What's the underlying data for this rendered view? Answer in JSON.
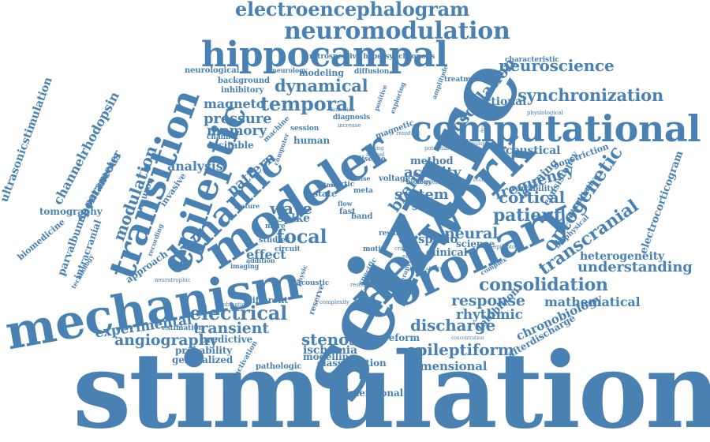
{
  "colors": {
    "word": "#4a81b3",
    "background": "#ffffff"
  },
  "words": {
    "stimulation": "stimulation",
    "seizure": "seizure",
    "network": "network",
    "computational": "computational",
    "mechanism": "mechanism",
    "modeler": "modeler",
    "coronary": "coronary",
    "hippocampal": "hippocampal",
    "transition": "transition",
    "epileptic": "epileptic",
    "dynamic": "dynamic",
    "neuromodulation": "neuromodulation",
    "electroencephalogram": "electroencephalogram",
    "neuroscience": "neuroscience",
    "synchronization": "synchronization",
    "oscillation": "oscillation",
    "optogenetic": "optogenetic",
    "transcranial": "transcranial",
    "consolidation": "consolidation",
    "understanding": "understanding",
    "electrical": "electrical",
    "discharge": "discharge",
    "epileptiform": "epileptiform",
    "angiography": "angiography",
    "stenosis": "stenosis",
    "temporal": "temporal",
    "dynamical": "dynamical",
    "patient": "patient",
    "cortical": "cortical",
    "frequency": "frequency",
    "neural": "neural",
    "focal": "focal",
    "wave": "wave",
    "modulation": "modulation",
    "response": "response",
    "rhythmic": "rhythmic",
    "mathematical": "mathematical",
    "heterogeneity": "heterogeneity",
    "chronobiology": "chronobiology",
    "afterdischarge": "afterdischarge",
    "experimental": "experimental",
    "transient": "transient",
    "pressure": "pressure",
    "magneto": "magneto",
    "memory": "memory",
    "activity": "activity",
    "system": "system",
    "brain": "brain",
    "pattern": "pattern",
    "analysis": "analysis",
    "effect": "effect",
    "acoustical": "acoustical",
    "fractional": "fractional",
    "ultrasonicstimulation": "ultrasonicstimulation",
    "channelrhodopsin": "channelrhodopsin",
    "tomography": "tomography",
    "parvalbumin": "parvalbumin",
    "biomedicine": "biomedicine",
    "electrocorticogram": "electrocorticogram",
    "dimensional": "dimensional",
    "classification": "classification",
    "modelling": "modelling",
    "ischemia": "ischemia",
    "waveform": "waveform",
    "probability": "probability",
    "generalized": "generalized",
    "pathologic": "pathologic",
    "predictive": "predictive",
    "estimation": "estimation",
    "approach": "approach",
    "different": "different",
    "neurological": "neurological",
    "modeling": "modeling",
    "background": "background",
    "inhibitory": "inhibitory",
    "retrospective hypersynchronous": "retrospective hypersynchronous",
    "characteristic": "characteristic",
    "treatment": "treatment",
    "excitable": "excitable",
    "channel": "channel",
    "invasive": "invasive",
    "neuron": "neuron",
    "spike": "spike",
    "human": "human",
    "method": "method",
    "study": "study",
    "clinical": "clinical",
    "science": "science",
    "spatio": "spatio",
    "learning": "learning",
    "inhibition": "inhibition",
    "intracranial": "intracranial",
    "parameter": "parameter",
    "spontaneous": "spontaneous",
    "reserve": "reserve",
    "state": "state",
    "session": "session",
    "diagnosis": "diagnosis",
    "diffusion": "diffusion",
    "neurology": "neurology",
    "physiological": "physiological",
    "magnetic": "magnetic",
    "exploring": "exploring",
    "positive": "positive",
    "amplitude": "amplitude",
    "constriction": "constriction",
    "variability": "variability",
    "quantitative": "quantitative",
    "biophysical": "biophysical",
    "consistency": "consistency",
    "voltage": "voltage",
    "biology": "biology",
    "disease": "disease",
    "aortic": "aortic",
    "meta": "meta",
    "fast": "fast",
    "tmas": "tmas",
    "band": "band",
    "flow": "flow",
    "noise": "noise",
    "studies": "studies",
    "circuit": "circuit",
    "more": "more",
    "feature": "feature",
    "recording": "recording",
    "technology": "technology",
    "neurotrophic": "neurotrophic",
    "combination": "combination",
    "activation": "activation",
    "imaging": "imaging",
    "addition": "addition",
    "acoustic": "acoustic",
    "physic": "physic",
    "complexity": "complexity",
    "research": "research",
    "therapy": "therapy",
    "specific": "specific",
    "complex": "complex",
    "epileptor": "epileptor",
    "concentration": "concentration",
    "critical": "critical",
    "motif": "motif",
    "computer": "computer",
    "machine": "machine",
    "increase": "increase",
    "resistant": "resistant",
    "finding": "finding",
    "animal": "animal",
    "potential": "potential",
    "telegen": "telegen",
    "evolution": "evolution",
    "electric": "electric",
    "abnormal": "abnormal",
    "result": "result",
    "dimension": "dimension",
    "developing": "developing",
    "accuracy": "accuracy",
    "electrophysiological": "electrophysiological"
  }
}
